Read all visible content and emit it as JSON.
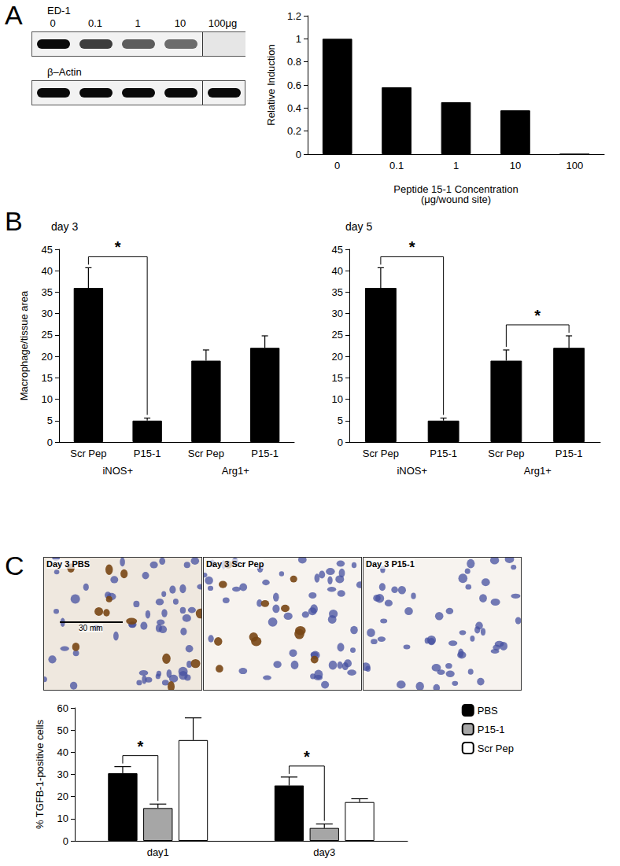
{
  "panel_labels": [
    "A",
    "B",
    "C"
  ],
  "blot": {
    "rows": [
      "ED-1",
      "β–Actin"
    ],
    "lanes": [
      "0",
      "0.1",
      "1",
      "10",
      "100μg"
    ]
  },
  "micrographs": {
    "panels": [
      "Day 3 PBS",
      "Day 3 Scr Pep",
      "Day 3 P15-1"
    ],
    "scale_bar": "30 mm"
  },
  "chart_data": [
    {
      "type": "bar",
      "categories": [
        "0",
        "0.1",
        "1",
        "10",
        "100"
      ],
      "values": [
        1,
        0.58,
        0.45,
        0.38,
        0
      ],
      "color": "#000000",
      "ylabel": "Relative Induction",
      "xlabel": "Peptide 15-1 Concentration\n(μg/wound site)",
      "ylim": [
        0,
        1.2
      ],
      "yticks": [
        0,
        0.2,
        0.4,
        0.6,
        0.8,
        1,
        1.2
      ],
      "grid": false
    },
    {
      "type": "bar",
      "title": "day 3",
      "categories": [
        "Scr Pep",
        "P15-1",
        "Scr Pep",
        "P15-1"
      ],
      "groups": [
        "iNOS+",
        "iNOS+",
        "Arg1+",
        "Arg1+"
      ],
      "values": [
        36,
        5,
        19,
        22
      ],
      "errors": [
        4.7,
        0.6,
        2.5,
        2.8
      ],
      "color": "#000000",
      "ylabel": "Macrophage/tissue area",
      "ylim": [
        0,
        45
      ],
      "yticks": [
        0,
        5,
        10,
        15,
        20,
        25,
        30,
        35,
        40,
        45
      ],
      "grid": false,
      "significance": [
        {
          "between": [
            0,
            1
          ],
          "label": "*"
        }
      ]
    },
    {
      "type": "bar",
      "title": "day 5",
      "categories": [
        "Scr Pep",
        "P15-1",
        "Scr Pep",
        "P15-1"
      ],
      "groups": [
        "iNOS+",
        "iNOS+",
        "Arg1+",
        "Arg1+"
      ],
      "values": [
        36,
        5,
        19,
        22
      ],
      "errors": [
        4.7,
        0.6,
        2.5,
        2.8
      ],
      "color": "#000000",
      "ylim": [
        0,
        45
      ],
      "yticks": [
        0,
        5,
        10,
        15,
        20,
        25,
        30,
        35,
        40,
        45
      ],
      "grid": false,
      "significance": [
        {
          "between": [
            0,
            1
          ],
          "label": "*"
        },
        {
          "between": [
            2,
            3
          ],
          "label": "*"
        }
      ]
    },
    {
      "type": "bar",
      "categories": [
        "day1",
        "day3"
      ],
      "ylabel": "% TGFB-1-positive cells",
      "series": [
        {
          "name": "PBS",
          "color": "#000000",
          "values": [
            30.5,
            25
          ],
          "errors": [
            3,
            3.8
          ]
        },
        {
          "name": "P15-1",
          "color": "#a6a6a6",
          "values": [
            14.8,
            5.8
          ],
          "errors": [
            1.8,
            1.8
          ]
        },
        {
          "name": "Scr Pep",
          "color": "#ffffff",
          "values": [
            45.5,
            17.5
          ],
          "errors": [
            10,
            1.5
          ]
        }
      ],
      "ylim": [
        0,
        60
      ],
      "yticks": [
        0,
        10,
        20,
        30,
        40,
        50,
        60
      ],
      "grid": false,
      "legend": "top-right",
      "significance": [
        {
          "category": 0,
          "series": [
            0,
            1
          ],
          "label": "*"
        },
        {
          "category": 1,
          "series": [
            0,
            1
          ],
          "label": "*"
        }
      ]
    }
  ]
}
